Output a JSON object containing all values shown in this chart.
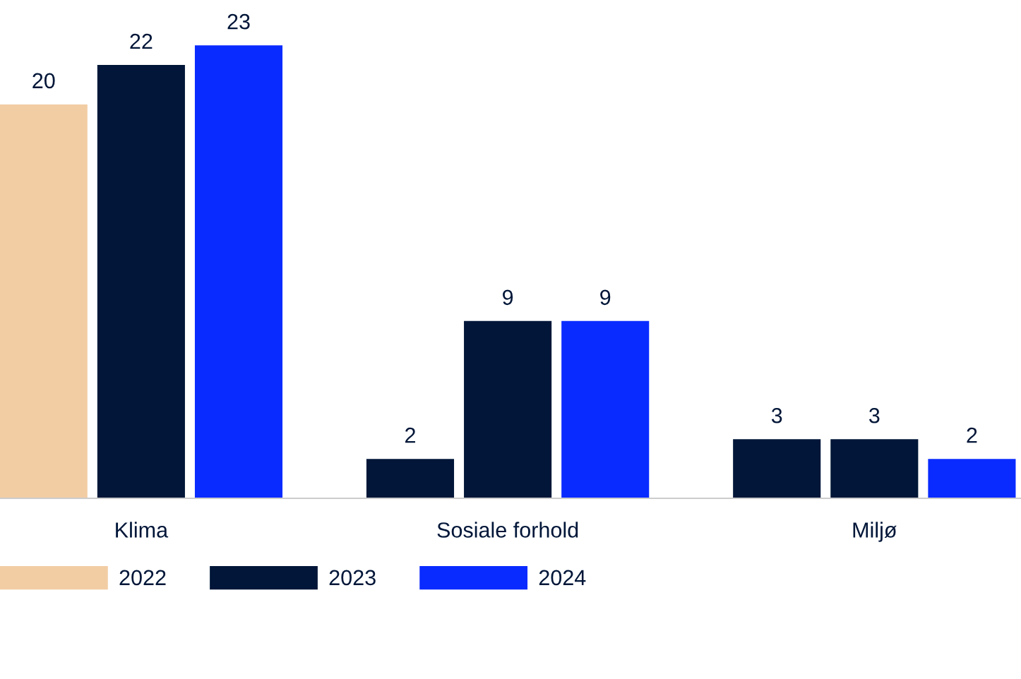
{
  "chart_data": {
    "type": "bar",
    "categories": [
      "Klima",
      "Sosiale forhold",
      "Miljø"
    ],
    "series": [
      {
        "name": "2022",
        "color": "#f2cda4",
        "colors": [
          "#f2cda4",
          "#011638",
          "#011638"
        ],
        "values": [
          20,
          2,
          3
        ]
      },
      {
        "name": "2023",
        "color": "#011638",
        "values": [
          22,
          9,
          3
        ]
      },
      {
        "name": "2024",
        "color": "#0a2bff",
        "values": [
          23,
          9,
          2
        ]
      }
    ],
    "data_labels": true,
    "legend": "bottom left",
    "grid": false,
    "tick_labels": "x"
  }
}
